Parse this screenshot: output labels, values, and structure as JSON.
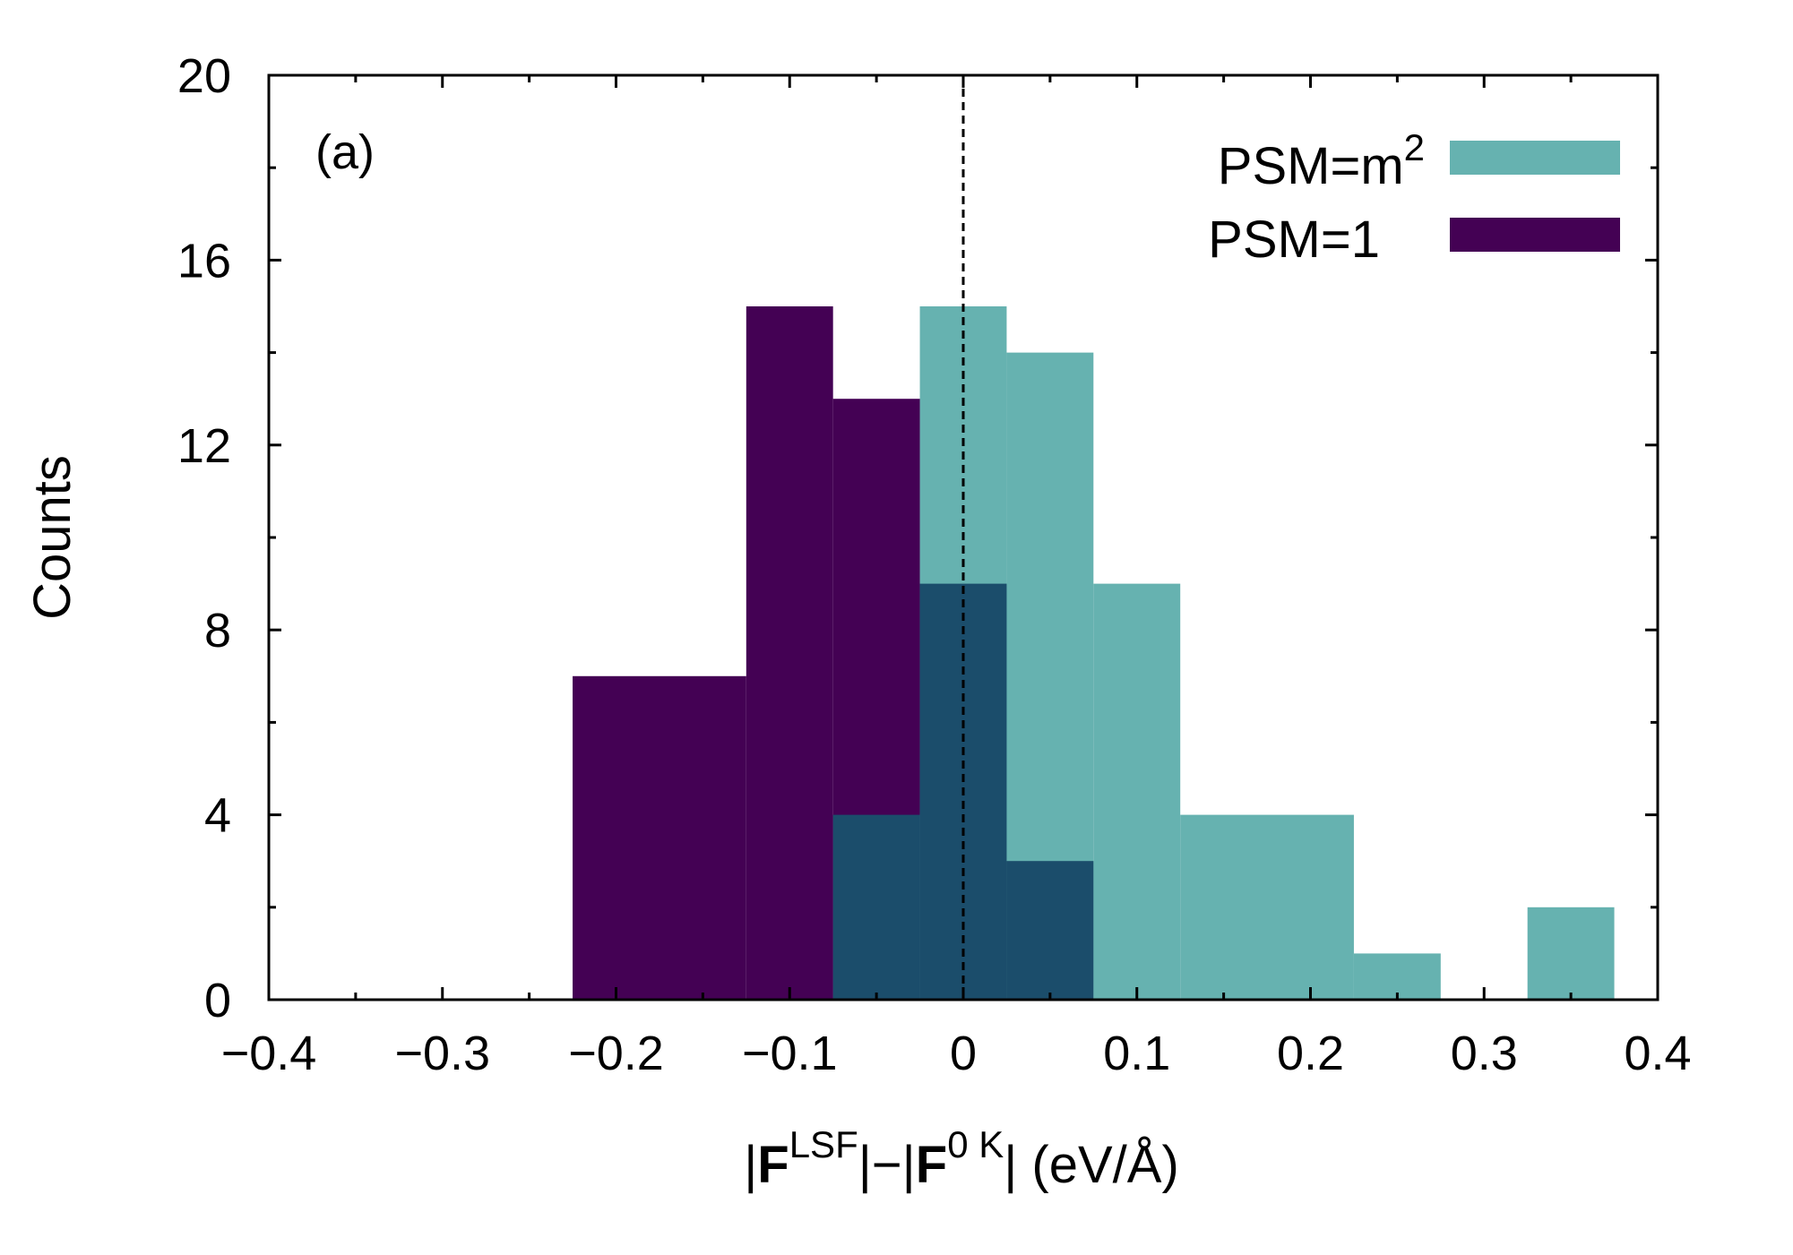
{
  "chart_data": {
    "type": "bar",
    "panel_label": "(a)",
    "xlabel_parts": {
      "open_bar": "|",
      "F1": "F",
      "sup1": "LSF",
      "middle": "|−|",
      "F2": "F",
      "sup2": "0 K",
      "close": "| (eV/Å)"
    },
    "ylabel": "Counts",
    "xlim": [
      -0.4,
      0.4
    ],
    "ylim": [
      0,
      20
    ],
    "xticks": [
      -0.4,
      -0.3,
      -0.2,
      -0.1,
      0,
      0.1,
      0.2,
      0.3,
      0.4
    ],
    "xtick_labels": [
      "−0.4",
      "−0.3",
      "−0.2",
      "−0.1",
      "0",
      "0.1",
      "0.2",
      "0.3",
      "0.4"
    ],
    "yticks": [
      0,
      4,
      8,
      12,
      16,
      20
    ],
    "ytick_labels": [
      "0",
      "4",
      "8",
      "12",
      "16",
      "20"
    ],
    "reference_line_x": 0,
    "legend_position": "top-right",
    "series": [
      {
        "name": "PSM=m2",
        "legend_main": "PSM=m",
        "legend_sup": "2",
        "color": "#66b2b0",
        "bins": [
          {
            "left": -0.025,
            "right": 0.025,
            "count": 15
          },
          {
            "left": 0.025,
            "right": 0.075,
            "count": 14
          },
          {
            "left": 0.075,
            "right": 0.125,
            "count": 9
          },
          {
            "left": 0.125,
            "right": 0.225,
            "count": 4
          },
          {
            "left": 0.225,
            "right": 0.275,
            "count": 1
          },
          {
            "left": 0.325,
            "right": 0.375,
            "count": 2
          }
        ]
      },
      {
        "name": "PSM=1",
        "legend_main": "PSM=1",
        "legend_sup": "",
        "color": "#440154",
        "bins": [
          {
            "left": -0.225,
            "right": -0.125,
            "count": 7
          },
          {
            "left": -0.125,
            "right": -0.075,
            "count": 15
          },
          {
            "left": -0.075,
            "right": -0.025,
            "count": 13
          }
        ]
      }
    ],
    "overlap_color": "#1b4d6b",
    "overlap_bins": [
      {
        "left": -0.075,
        "right": -0.025,
        "count": 4
      },
      {
        "left": -0.025,
        "right": 0.025,
        "count": 9
      },
      {
        "left": 0.025,
        "right": 0.075,
        "count": 3
      }
    ]
  }
}
